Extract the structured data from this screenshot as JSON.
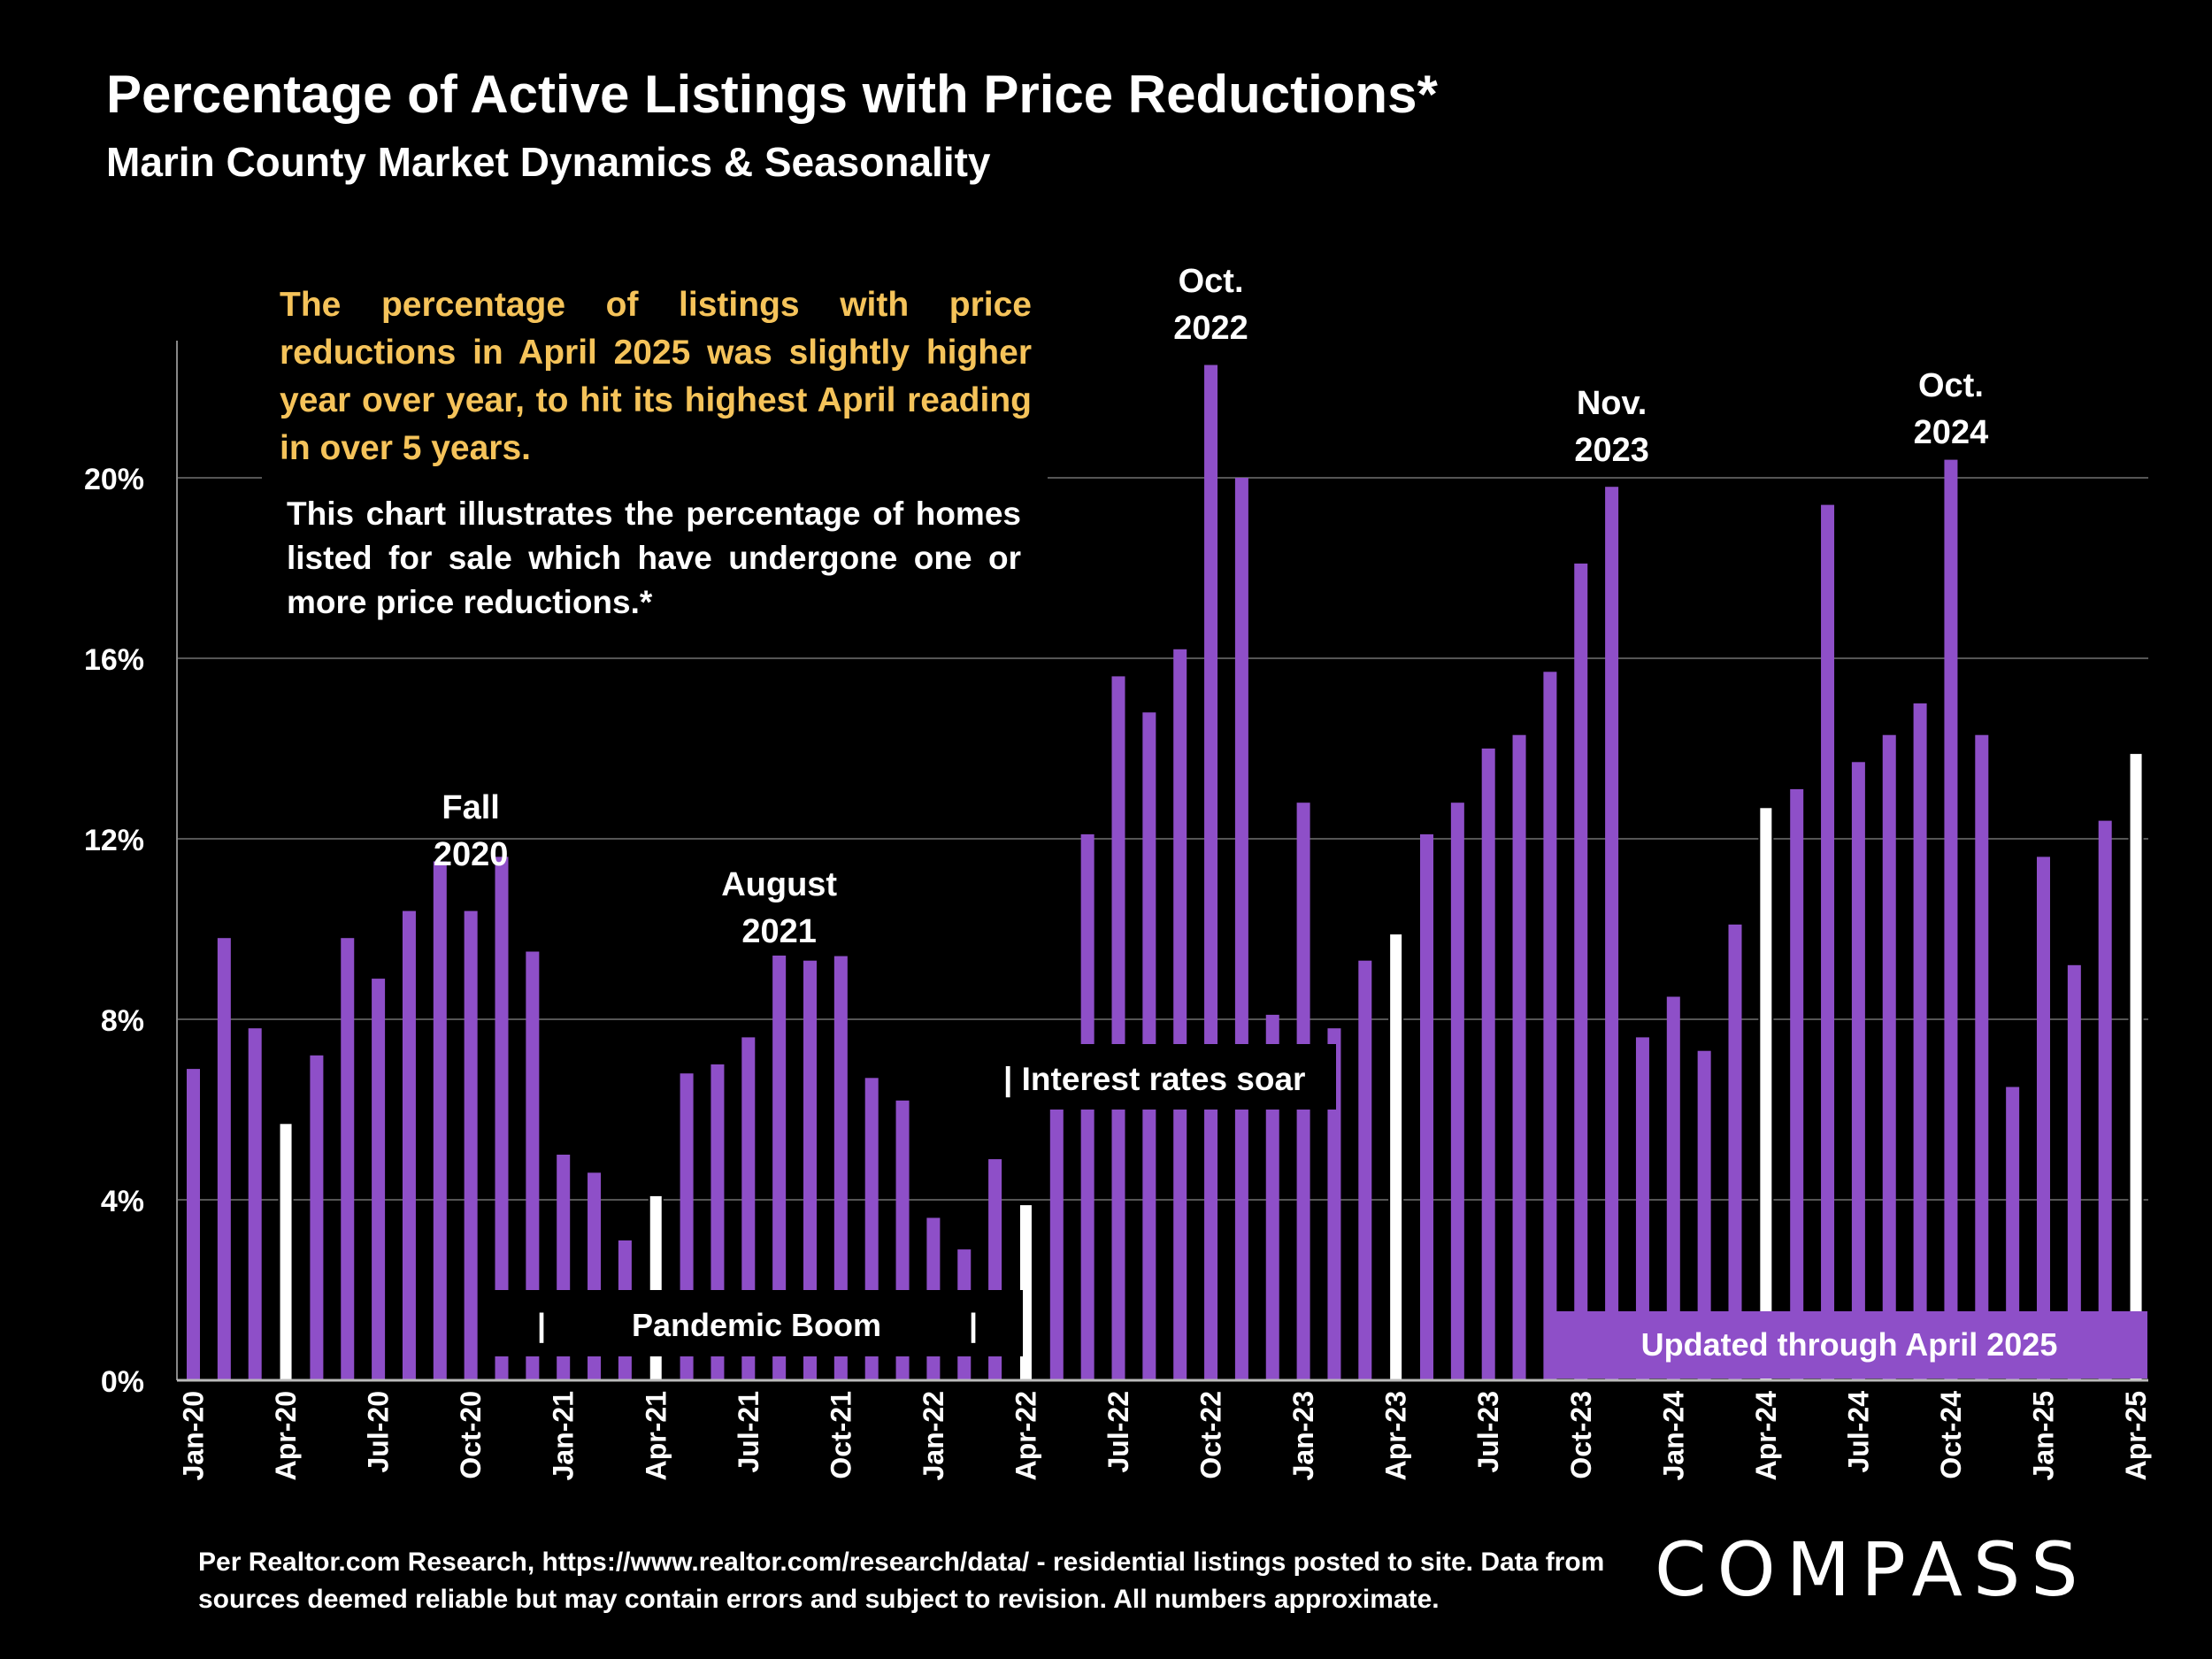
{
  "title": "Percentage of Active Listings with Price Reductions*",
  "subtitle": "Marin County Market Dynamics & Seasonality",
  "headline_note": "The percentage of listings with price reductions in April 2025 was slightly higher year over year, to hit its highest April reading in over 5 years.",
  "description_note": "This chart illustrates the percentage of homes listed for sale which have undergone one or more price reductions.*",
  "footnote": "Per Realtor.com Research, https://www.realtor.com/research/data/ - residential listings posted to site.  Data from sources deemed reliable but may contain errors and subject to revision. All numbers approximate.",
  "logo_text": "COMPASS",
  "colors": {
    "bar": "#8e4fc8",
    "highlight_bar": "#ffffff",
    "headline": "#f5c35a",
    "grid": "#555555",
    "background": "#000000"
  },
  "chart_data": {
    "type": "bar",
    "title": "Percentage of Active Listings with Price Reductions*",
    "ylim": [
      0,
      23
    ],
    "yticks": [
      "0%",
      "4%",
      "8%",
      "12%",
      "16%",
      "20%"
    ],
    "ytick_values": [
      0,
      4,
      8,
      12,
      16,
      20
    ],
    "grid": true,
    "categories": [
      "Jan-20",
      "Feb-20",
      "Mar-20",
      "Apr-20",
      "May-20",
      "Jun-20",
      "Jul-20",
      "Aug-20",
      "Sep-20",
      "Oct-20",
      "Nov-20",
      "Dec-20",
      "Jan-21",
      "Feb-21",
      "Mar-21",
      "Apr-21",
      "May-21",
      "Jun-21",
      "Jul-21",
      "Aug-21",
      "Sep-21",
      "Oct-21",
      "Nov-21",
      "Dec-21",
      "Jan-22",
      "Feb-22",
      "Mar-22",
      "Apr-22",
      "May-22",
      "Jun-22",
      "Jul-22",
      "Aug-22",
      "Sep-22",
      "Oct-22",
      "Nov-22",
      "Dec-22",
      "Jan-23",
      "Feb-23",
      "Mar-23",
      "Apr-23",
      "May-23",
      "Jun-23",
      "Jul-23",
      "Aug-23",
      "Sep-23",
      "Oct-23",
      "Nov-23",
      "Dec-23",
      "Jan-24",
      "Feb-24",
      "Mar-24",
      "Apr-24",
      "May-24",
      "Jun-24",
      "Jul-24",
      "Aug-24",
      "Sep-24",
      "Oct-24",
      "Nov-24",
      "Dec-24",
      "Jan-25",
      "Feb-25",
      "Mar-25",
      "Apr-25"
    ],
    "x_tick_labels": [
      "Jan-20",
      "Apr-20",
      "Jul-20",
      "Oct-20",
      "Jan-21",
      "Apr-21",
      "Jul-21",
      "Oct-21",
      "Jan-22",
      "Apr-22",
      "Jul-22",
      "Oct-22",
      "Jan-23",
      "Apr-23",
      "Jul-23",
      "Oct-23",
      "Jan-24",
      "Apr-24",
      "Jul-24",
      "Oct-24",
      "Jan-25",
      "Apr-25"
    ],
    "values": [
      6.9,
      9.8,
      7.8,
      5.7,
      7.2,
      9.8,
      8.9,
      10.4,
      11.5,
      10.4,
      11.6,
      9.5,
      5.0,
      4.6,
      3.1,
      4.1,
      6.8,
      7.0,
      7.6,
      9.8,
      9.3,
      9.4,
      6.7,
      6.2,
      3.6,
      2.9,
      4.9,
      3.9,
      6.1,
      12.1,
      15.6,
      14.8,
      16.2,
      22.5,
      20.0,
      8.1,
      12.8,
      7.8,
      9.3,
      9.9,
      12.1,
      12.8,
      14.0,
      14.3,
      15.7,
      18.1,
      19.8,
      7.6,
      8.5,
      7.3,
      10.1,
      12.7,
      13.1,
      19.4,
      13.7,
      14.3,
      15.0,
      20.4,
      14.3,
      6.5,
      11.6,
      9.2,
      12.4,
      13.9
    ],
    "highlighted": [
      "Apr-20",
      "Apr-21",
      "Apr-22",
      "Apr-23",
      "Apr-24",
      "Apr-25"
    ],
    "annotations": [
      {
        "text": [
          "Fall",
          "2020"
        ],
        "at": "Oct-20"
      },
      {
        "text": [
          "August",
          "2021"
        ],
        "at": "Aug-21"
      },
      {
        "text": [
          "Oct.",
          "2022"
        ],
        "at": "Oct-22"
      },
      {
        "text": [
          "Nov.",
          "2023"
        ],
        "at": "Nov-23"
      },
      {
        "text": [
          "Oct.",
          "2024"
        ],
        "at": "Oct-24"
      }
    ],
    "pandemic_label": "Pandemic Boom",
    "interest_label": "| Interest rates soar",
    "updated_label": "Updated through April 2025"
  }
}
